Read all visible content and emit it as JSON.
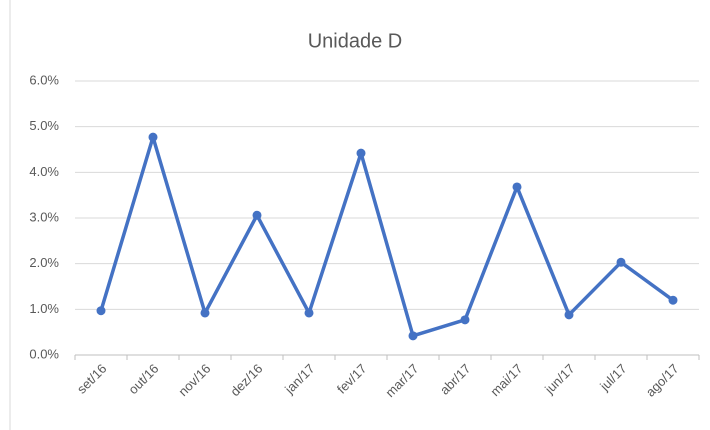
{
  "chart_data": {
    "type": "line",
    "title": "Unidade D",
    "categories": [
      "set/16",
      "out/16",
      "nov/16",
      "dez/16",
      "jan/17",
      "fev/17",
      "mar/17",
      "abr/17",
      "mai/17",
      "jun/17",
      "jul/17",
      "ago/17"
    ],
    "series": [
      {
        "name": "Unidade D",
        "color": "#4472c4",
        "values": [
          0.97,
          4.77,
          0.92,
          3.06,
          0.92,
          4.42,
          0.42,
          0.77,
          3.68,
          0.88,
          2.03,
          1.2
        ]
      }
    ],
    "ylim": [
      0,
      6
    ],
    "yticks": [
      {
        "value": 0,
        "label": "0.0%"
      },
      {
        "value": 1,
        "label": "1.0%"
      },
      {
        "value": 2,
        "label": "2.0%"
      },
      {
        "value": 3,
        "label": "3.0%"
      },
      {
        "value": 4,
        "label": "4.0%"
      },
      {
        "value": 5,
        "label": "5.0%"
      },
      {
        "value": 6,
        "label": "6.0%"
      }
    ],
    "grid": true
  }
}
